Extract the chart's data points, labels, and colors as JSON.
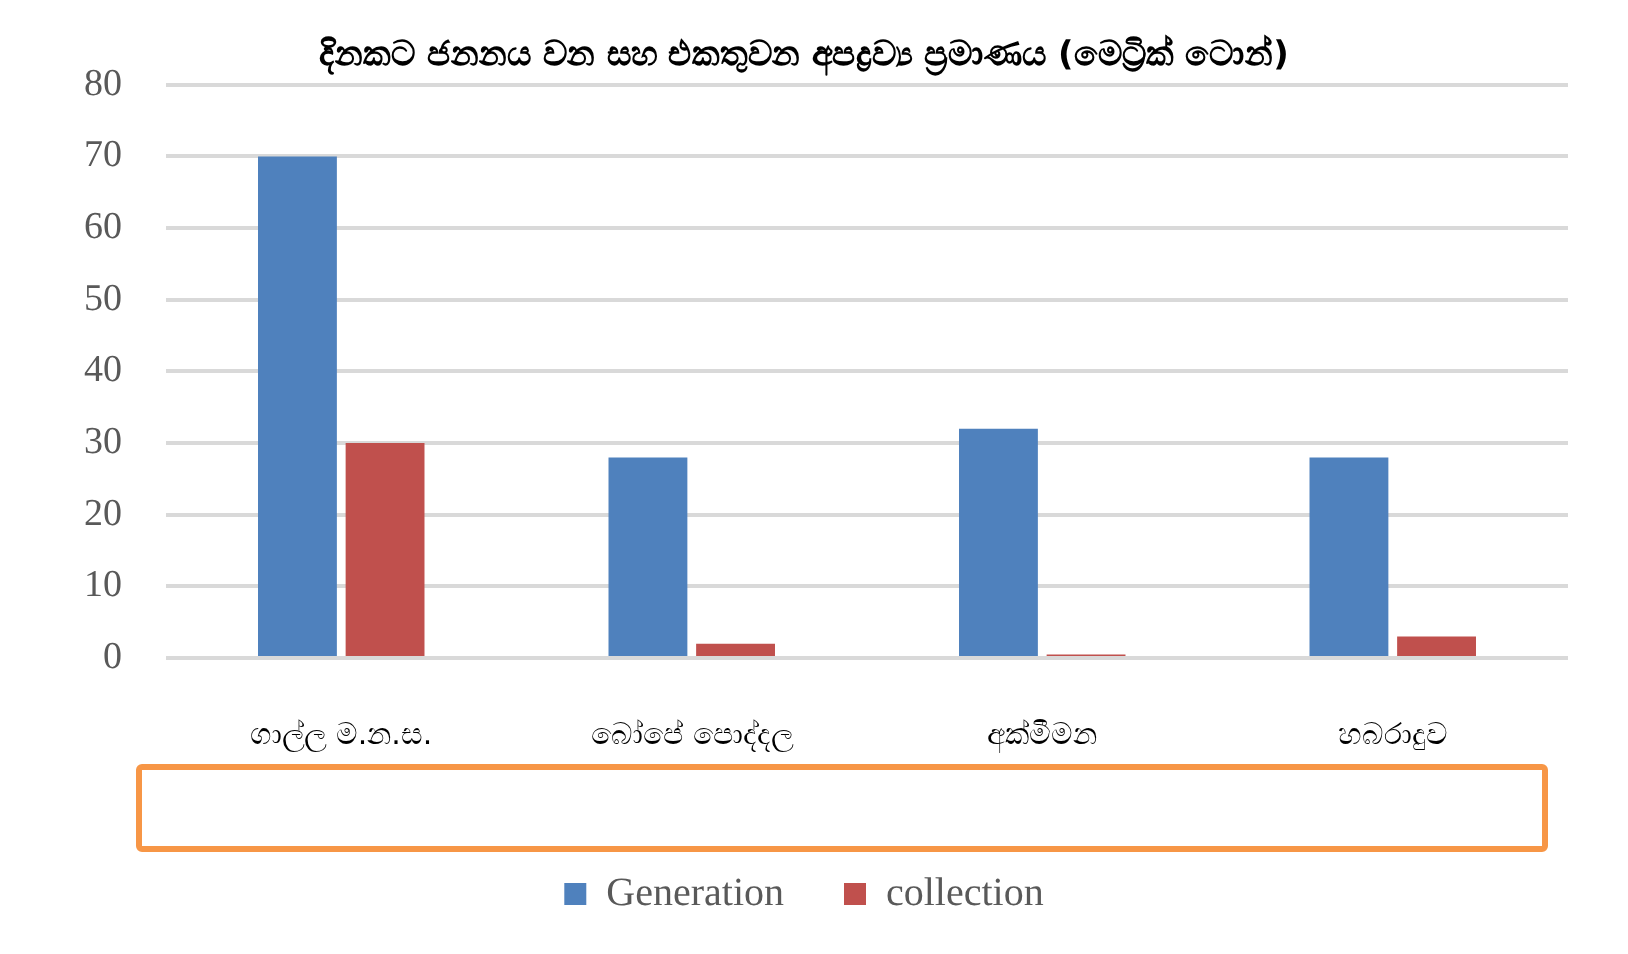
{
  "chart_data": {
    "type": "bar",
    "title": "දිනකට ජනනය වන සහ එකතුවන අපද්‍රව්‍ය ප්‍රමාණය (මෙට්‍රික් ටොන්)",
    "categories": [
      "ගාල්ල ම.න.ස.",
      "බෝපේ පොද්දල",
      "අක්මීමන",
      "හබරාදුව"
    ],
    "series": [
      {
        "name": "Generation",
        "color": "#4f81bd",
        "values": [
          70,
          28,
          32,
          28
        ]
      },
      {
        "name": "collection",
        "color": "#c0504d",
        "values": [
          30,
          2,
          0.5,
          3
        ]
      }
    ],
    "ylim": [
      0,
      80
    ],
    "yticks": [
      0,
      10,
      20,
      30,
      40,
      50,
      60,
      70,
      80
    ],
    "grid": "y",
    "legend": "bottom"
  }
}
